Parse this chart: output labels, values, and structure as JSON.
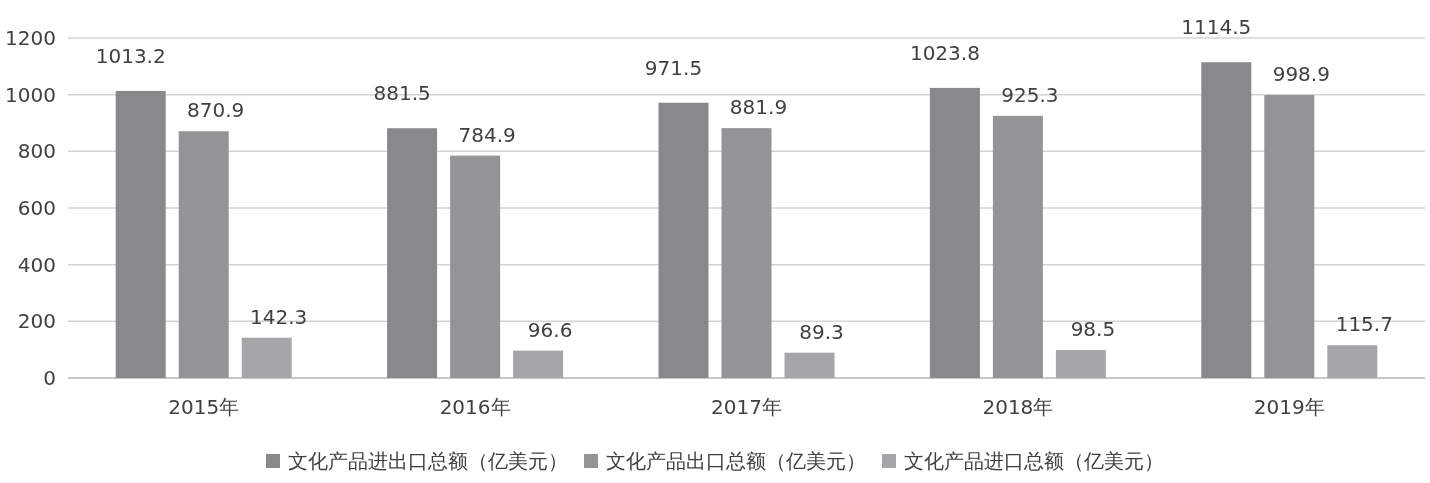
{
  "chart_data": {
    "type": "bar",
    "categories": [
      "2015年",
      "2016年",
      "2017年",
      "2018年",
      "2019年"
    ],
    "series": [
      {
        "name": "文化产品进出口总额（亿美元）",
        "color": "#88898b",
        "values": [
          1013.2,
          881.5,
          971.5,
          1023.8,
          1114.5
        ]
      },
      {
        "name": "文化产品出口总额（亿美元）",
        "color": "#939496",
        "values": [
          870.9,
          784.9,
          881.9,
          925.3,
          998.9
        ]
      },
      {
        "name": "文化产品进口总额（亿美元）",
        "color": "#a5a6a8",
        "values": [
          142.3,
          96.6,
          89.3,
          98.5,
          115.7
        ]
      }
    ],
    "ylim": [
      0,
      1200
    ],
    "yticks": [
      0,
      200,
      400,
      600,
      800,
      1000,
      1200
    ],
    "grid": "y",
    "legend": "bottom",
    "data_labels": true
  }
}
